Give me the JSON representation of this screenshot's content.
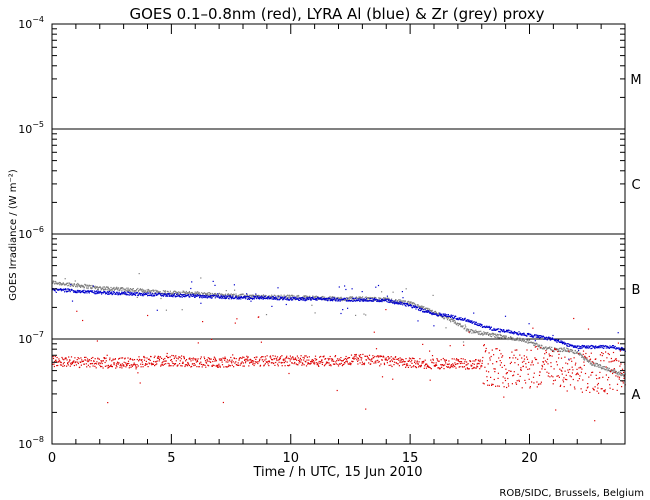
{
  "chart_data": {
    "type": "scatter",
    "title": "GOES 0.1–0.8nm (red), LYRA Al (blue) & Zr (grey) proxy",
    "xlabel": "Time / h UTC, 15 Jun 2010",
    "ylabel": "GOES Irradiance / (W m⁻²)",
    "xlim": [
      0,
      24
    ],
    "ylim": [
      1e-08,
      0.0001
    ],
    "yscale": "log",
    "x_ticks": [
      0,
      5,
      10,
      15,
      20
    ],
    "y_ticks": [
      {
        "value": 1e-08,
        "base": "10",
        "exp": "−8"
      },
      {
        "value": 1e-07,
        "base": "10",
        "exp": "−7"
      },
      {
        "value": 1e-06,
        "base": "10",
        "exp": "−6"
      },
      {
        "value": 1e-05,
        "base": "10",
        "exp": "−5"
      },
      {
        "value": 0.0001,
        "base": "10",
        "exp": "−4"
      }
    ],
    "class_lines": [
      1e-07,
      1e-06,
      1e-05
    ],
    "flare_classes": [
      {
        "label": "A",
        "value": 3e-08
      },
      {
        "label": "B",
        "value": 3e-07
      },
      {
        "label": "C",
        "value": 3e-06
      },
      {
        "label": "M",
        "value": 3e-05
      }
    ],
    "series": [
      {
        "color": "#7f7f7f",
        "x": [
          0,
          1,
          2,
          3,
          4,
          5,
          6,
          7,
          8,
          9,
          10,
          11,
          12,
          13,
          14,
          15,
          15.5,
          16,
          16.5,
          17,
          17.5,
          18,
          18.5,
          19,
          19.5,
          20,
          20.5,
          21,
          21.5,
          22,
          22.5,
          23,
          23.5,
          24
        ],
        "y": [
          3.5e-07,
          3.3e-07,
          3.1e-07,
          3e-07,
          2.9e-07,
          2.8e-07,
          2.75e-07,
          2.65e-07,
          2.6e-07,
          2.55e-07,
          2.55e-07,
          2.5e-07,
          2.45e-07,
          2.45e-07,
          2.4e-07,
          2.2e-07,
          2e-07,
          1.8e-07,
          1.6e-07,
          1.4e-07,
          1.2e-07,
          1.15e-07,
          1.1e-07,
          1.05e-07,
          1e-07,
          9.5e-08,
          8.5e-08,
          8e-08,
          8e-08,
          7.5e-08,
          6e-08,
          5.5e-08,
          5e-08,
          4.5e-08
        ]
      },
      {
        "color": "#0000cc",
        "x": [
          0,
          1,
          2,
          3,
          4,
          5,
          6,
          7,
          8,
          9,
          10,
          11,
          12,
          13,
          14,
          15,
          15.5,
          16,
          16.5,
          17,
          17.5,
          18,
          18.5,
          19,
          19.5,
          20,
          20.5,
          21,
          21.5,
          22,
          22.5,
          23,
          23.5,
          24
        ],
        "y": [
          3e-07,
          2.9e-07,
          2.8e-07,
          2.75e-07,
          2.7e-07,
          2.65e-07,
          2.6e-07,
          2.55e-07,
          2.5e-07,
          2.5e-07,
          2.45e-07,
          2.45e-07,
          2.4e-07,
          2.4e-07,
          2.35e-07,
          2.1e-07,
          1.9e-07,
          1.75e-07,
          1.7e-07,
          1.6e-07,
          1.5e-07,
          1.35e-07,
          1.25e-07,
          1.2e-07,
          1.15e-07,
          1.1e-07,
          1.05e-07,
          1e-07,
          9e-08,
          8.5e-08,
          8.5e-08,
          8.5e-08,
          8.5e-08,
          8e-08
        ]
      },
      {
        "color": "#dd0000",
        "x": [
          0,
          1,
          2,
          3,
          4,
          5,
          6,
          7,
          8,
          9,
          10,
          11,
          12,
          13,
          14,
          15,
          16,
          17,
          18,
          19,
          20,
          21,
          22,
          23,
          24
        ],
        "y": [
          6.2e-08,
          6.1e-08,
          6e-08,
          6e-08,
          6.2e-08,
          6.3e-08,
          6.1e-08,
          6.1e-08,
          6.2e-08,
          6.3e-08,
          6.3e-08,
          6.2e-08,
          6.3e-08,
          6.5e-08,
          6.2e-08,
          6e-08,
          5.9e-08,
          5.9e-08,
          5.8e-08,
          5.5e-08,
          5.5e-08,
          5.3e-08,
          5e-08,
          4.8e-08,
          5e-08
        ]
      }
    ],
    "credit": "ROB/SIDC, Brussels, Belgium"
  }
}
